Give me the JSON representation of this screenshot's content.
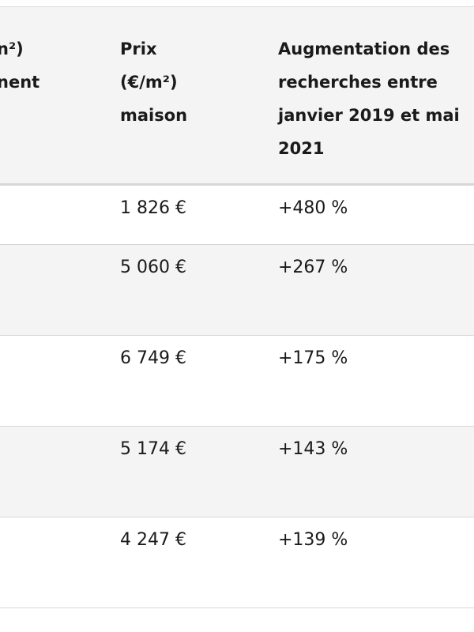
{
  "table": {
    "header": {
      "partial": [
        "n²)",
        "nent"
      ],
      "columns": [
        [
          "Prix",
          "(€/m²)",
          "maison"
        ],
        [
          "Augmentation des",
          "recherches entre",
          "janvier 2019 et mai",
          "2021"
        ]
      ]
    },
    "rows": [
      [
        "1 826 €",
        "+480 %"
      ],
      [
        "5 060 €",
        "+267 %"
      ],
      [
        "6 749 €",
        "+175 %"
      ],
      [
        "5 174 €",
        "+143 %"
      ],
      [
        "4 247 €",
        "+139 %"
      ]
    ]
  }
}
